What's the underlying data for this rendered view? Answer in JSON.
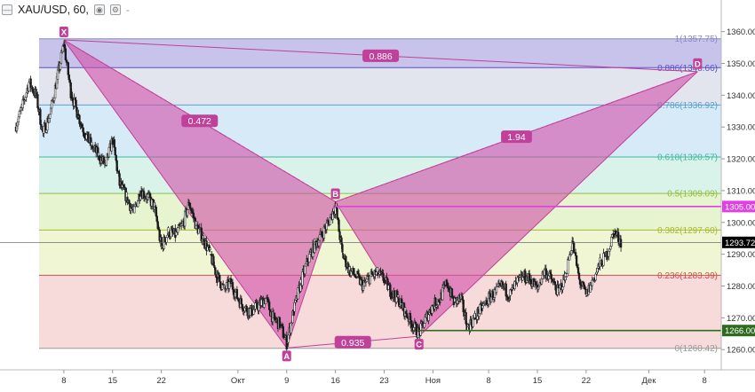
{
  "header": {
    "title": "XAU/USD, 60,",
    "dash": "-",
    "icons": [
      "collapse-icon",
      "eye-icon",
      "settings-icon"
    ]
  },
  "colors": {
    "candle": "#1a1a1a",
    "pattern_fill": "#d24fa8",
    "pattern_line": "#c0409a",
    "resistance_line": "#e040e0",
    "support_line": "#2e6b1f",
    "label_bg": "#c0409a",
    "current_price_bg": "#000000"
  },
  "price_axis": {
    "ticks": [
      "1360.00",
      "1350.00",
      "1340.00",
      "1330.00",
      "1320.00",
      "1310.00",
      "1300.00",
      "1290.00",
      "1280.00",
      "1270.00",
      "1260.00"
    ],
    "tick_values": [
      1360,
      1350,
      1340,
      1330,
      1320,
      1310,
      1300,
      1290,
      1280,
      1270,
      1260
    ],
    "min": 1255.6,
    "max": 1363.8
  },
  "time_axis": {
    "labels": [
      "8",
      "15",
      "22",
      "Окт",
      "9",
      "16",
      "23",
      "Ноя",
      "8",
      "15",
      "22",
      "Дек",
      "8"
    ],
    "dates": [
      "2018-08-08",
      "2018-08-15",
      "2018-08-22",
      "2018-09-02",
      "2018-09-09",
      "2018-09-16",
      "2018-09-23",
      "2018-09-30",
      "2018-10-08",
      "2018-10-15",
      "2018-10-22",
      "2018-10-31",
      "2018-11-08"
    ],
    "start": "2018-08-01",
    "end": "2018-11-09"
  },
  "fib_levels": [
    {
      "label": "1(1357.75)",
      "value": 1357.75,
      "color": "#8b87c9",
      "fill": "#bdb8e6"
    },
    {
      "label": "0.886(1348.66)",
      "value": 1348.66,
      "color": "#5b4fd0",
      "fill": "#dde0ea"
    },
    {
      "label": "0.786(1336.92)",
      "value": 1336.92,
      "color": "#5aa0d0",
      "fill": "#cfe8f6"
    },
    {
      "label": "0.618(1320.57)",
      "value": 1320.57,
      "color": "#3fb89a",
      "fill": "#d4f1e6"
    },
    {
      "label": "0.5(1309.09)",
      "value": 1309.09,
      "color": "#8fbf3f",
      "fill": "#e2f3c8"
    },
    {
      "label": "0.382(1297.60)",
      "value": 1297.6,
      "color": "#a8b82e",
      "fill": "#edf3cc"
    },
    {
      "label": "0.236(1283.39)",
      "value": 1283.39,
      "color": "#d05050",
      "fill": "#f6d3d3"
    },
    {
      "label": "0(1260.42)",
      "value": 1260.42,
      "color": "#999999",
      "fill": ""
    }
  ],
  "pattern": {
    "points": [
      {
        "name": "X",
        "date": "2018-08-08",
        "price": 1357.4
      },
      {
        "name": "A",
        "date": "2018-09-09",
        "price": 1260.5
      },
      {
        "name": "B",
        "date": "2018-09-16",
        "price": 1306.5
      },
      {
        "name": "C",
        "date": "2018-09-28",
        "price": 1264.2
      },
      {
        "name": "D",
        "date": "2018-11-07",
        "price": 1347.4
      }
    ],
    "ratios": [
      {
        "label": "0.472",
        "from": "X",
        "to": "B"
      },
      {
        "label": "1.94",
        "from": "B",
        "to": "D"
      },
      {
        "label": "0.886",
        "from": "X",
        "to": "D"
      },
      {
        "label": "0.935",
        "from": "A",
        "to": "C"
      }
    ]
  },
  "price_labels": [
    {
      "text": "1305.00",
      "value": 1305.0,
      "bg": "#e040e0",
      "fg": "#ffffff"
    },
    {
      "text": "1293.72",
      "value": 1293.72,
      "bg": "#000000",
      "fg": "#ffffff"
    },
    {
      "text": "1266.00",
      "value": 1266.0,
      "bg": "#2e6b1f",
      "fg": "#ffffff"
    }
  ],
  "chart_data": {
    "type": "line",
    "title": "XAU/USD, 60,",
    "xlabel": "",
    "ylabel": "",
    "ylim": [
      1255.6,
      1363.8
    ],
    "grid": false,
    "series": [
      {
        "x": [
          "2018-08-01",
          "2018-08-02",
          "2018-08-03",
          "2018-08-04",
          "2018-08-05",
          "2018-08-06",
          "2018-08-07",
          "2018-08-08",
          "2018-08-09",
          "2018-08-10",
          "2018-08-11",
          "2018-08-12",
          "2018-08-13",
          "2018-08-14",
          "2018-08-15",
          "2018-08-16",
          "2018-08-17",
          "2018-08-18",
          "2018-08-19",
          "2018-08-20",
          "2018-08-21",
          "2018-08-22",
          "2018-08-23",
          "2018-08-24",
          "2018-08-25",
          "2018-08-26",
          "2018-08-27",
          "2018-08-28",
          "2018-08-29",
          "2018-08-30",
          "2018-08-31",
          "2018-09-01",
          "2018-09-02",
          "2018-09-03",
          "2018-09-04",
          "2018-09-05",
          "2018-09-06",
          "2018-09-07",
          "2018-09-08",
          "2018-09-09",
          "2018-09-10",
          "2018-09-11",
          "2018-09-12",
          "2018-09-13",
          "2018-09-14",
          "2018-09-15",
          "2018-09-16",
          "2018-09-17",
          "2018-09-18",
          "2018-09-19",
          "2018-09-20",
          "2018-09-21",
          "2018-09-22",
          "2018-09-23",
          "2018-09-24",
          "2018-09-25",
          "2018-09-26",
          "2018-09-27",
          "2018-09-28",
          "2018-09-29",
          "2018-09-30",
          "2018-10-01",
          "2018-10-02",
          "2018-10-03",
          "2018-10-04",
          "2018-10-05",
          "2018-10-06",
          "2018-10-07",
          "2018-10-08",
          "2018-10-09",
          "2018-10-10",
          "2018-10-11",
          "2018-10-12",
          "2018-10-13",
          "2018-10-14",
          "2018-10-15",
          "2018-10-16",
          "2018-10-17",
          "2018-10-18",
          "2018-10-19",
          "2018-10-20",
          "2018-10-21",
          "2018-10-22",
          "2018-10-23",
          "2018-10-24",
          "2018-10-25",
          "2018-10-26",
          "2018-10-27"
        ],
        "values": [
          1330,
          1336,
          1344,
          1340,
          1328,
          1334,
          1345,
          1356,
          1341,
          1334,
          1328,
          1324,
          1321,
          1318,
          1326,
          1312,
          1308,
          1303,
          1310,
          1308,
          1305,
          1292,
          1297,
          1296,
          1299,
          1306,
          1299,
          1295,
          1290,
          1283,
          1279,
          1281,
          1276,
          1273,
          1272,
          1274,
          1276,
          1270,
          1268,
          1262,
          1272,
          1281,
          1288,
          1293,
          1296,
          1300,
          1305,
          1290,
          1285,
          1283,
          1280,
          1283,
          1284,
          1282,
          1278,
          1276,
          1272,
          1268,
          1265,
          1270,
          1274,
          1276,
          1281,
          1275,
          1276,
          1267,
          1270,
          1273,
          1276,
          1278,
          1280,
          1277,
          1281,
          1283,
          1282,
          1279,
          1285,
          1282,
          1278,
          1283,
          1294,
          1282,
          1277,
          1282,
          1287,
          1290,
          1297,
          1294
        ]
      }
    ]
  }
}
